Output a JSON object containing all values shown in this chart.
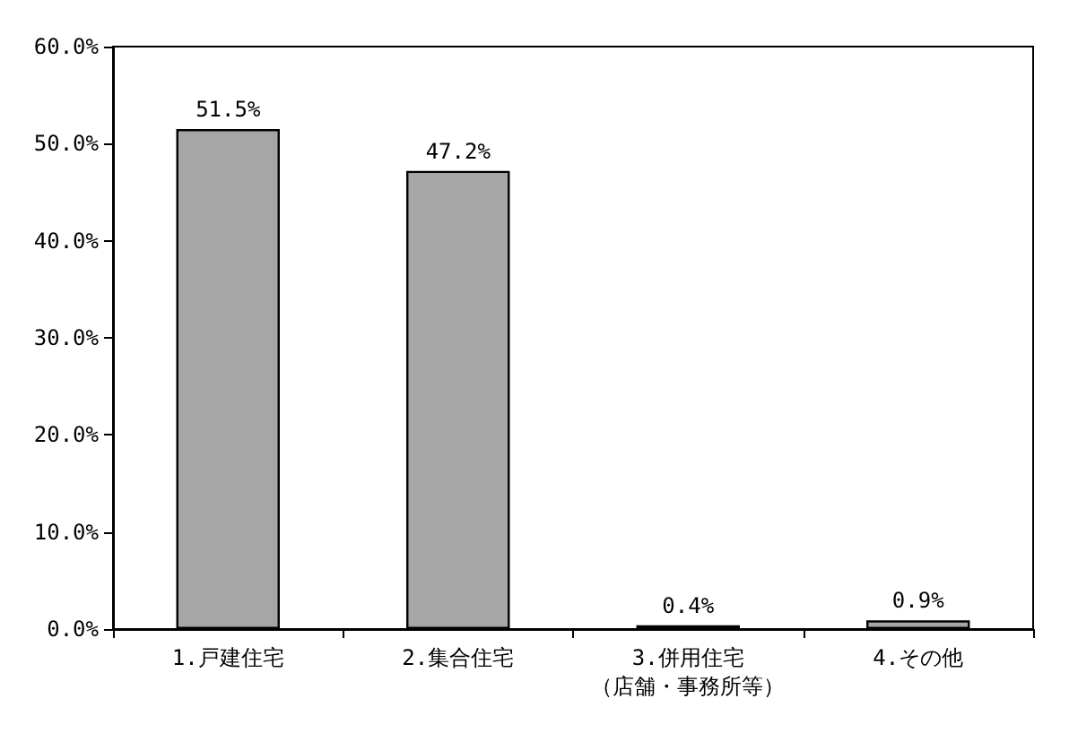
{
  "chart_data": {
    "type": "bar",
    "categories": [
      "1.戸建住宅",
      "2.集合住宅",
      "3.併用住宅（店舗・事務所等）",
      "4.その他"
    ],
    "values": [
      51.5,
      47.2,
      0.4,
      0.9
    ],
    "value_labels": [
      "51.5%",
      "47.2%",
      "0.4%",
      "0.9%"
    ],
    "color": "#a6a6a6",
    "ylim": [
      0,
      60
    ],
    "yticks": [
      {
        "value": 0,
        "label": "0.0%"
      },
      {
        "value": 10,
        "label": "10.0%"
      },
      {
        "value": 20,
        "label": "20.0%"
      },
      {
        "value": 30,
        "label": "30.0%"
      },
      {
        "value": 40,
        "label": "40.0%"
      },
      {
        "value": 50,
        "label": "50.0%"
      },
      {
        "value": 60,
        "label": "60.0%"
      }
    ],
    "grid": false
  }
}
